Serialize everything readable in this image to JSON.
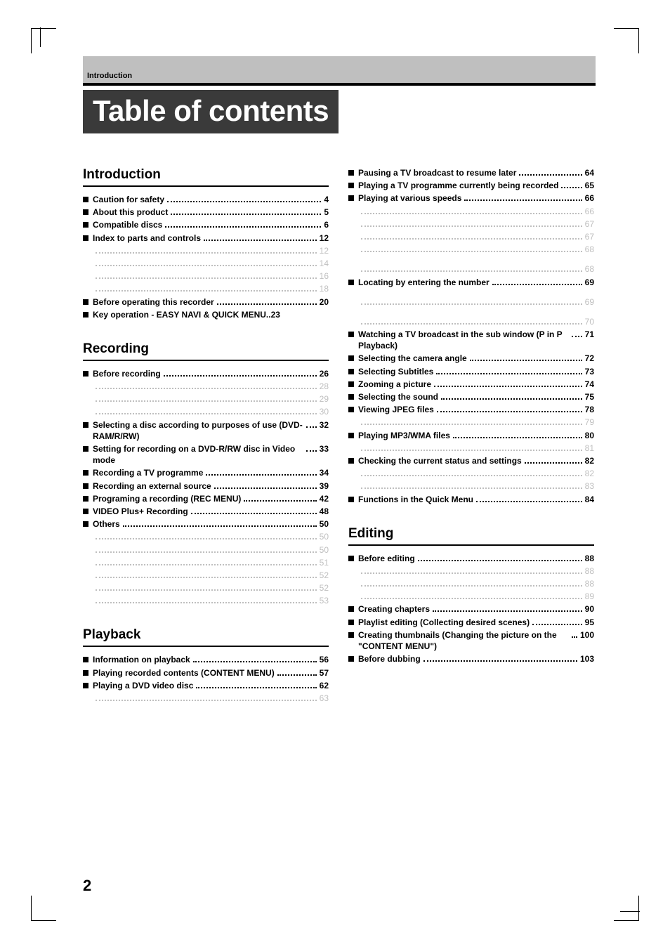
{
  "header_section_label": "Introduction",
  "page_title": "Table of contents",
  "page_number": "2",
  "colors": {
    "header_bar_bg": "#bfbfbf",
    "banner_bg": "#3a3a3a",
    "banner_text": "#ffffff",
    "rule": "#000000",
    "sub_text": "#bfbfbf"
  },
  "left": {
    "sections": [
      {
        "heading": "Introduction",
        "rows": [
          {
            "type": "main",
            "label": "Caution for safety",
            "page": "4"
          },
          {
            "type": "main",
            "label": "About this product",
            "page": "5"
          },
          {
            "type": "main",
            "label": "Compatible discs",
            "page": "6"
          },
          {
            "type": "main",
            "label": "Index to parts and controls",
            "page": "12"
          },
          {
            "type": "sub",
            "label": "",
            "page": "12"
          },
          {
            "type": "sub",
            "label": "",
            "page": "14"
          },
          {
            "type": "sub",
            "label": "",
            "page": "16"
          },
          {
            "type": "sub",
            "label": "",
            "page": "18"
          },
          {
            "type": "main",
            "label": "Before operating this recorder",
            "page": "20"
          },
          {
            "type": "main",
            "label": "Key operation - EASY NAVI & QUICK MENU",
            "page": "23",
            "tight": true
          }
        ]
      },
      {
        "heading": "Recording",
        "rows": [
          {
            "type": "main",
            "label": "Before recording",
            "page": "26"
          },
          {
            "type": "sub",
            "label": "",
            "page": "28"
          },
          {
            "type": "sub",
            "label": "",
            "page": "29"
          },
          {
            "type": "sub",
            "label": "",
            "page": "30"
          },
          {
            "type": "main",
            "label": "Selecting a disc according to purposes of use (DVD-RAM/R/RW)",
            "page": "32",
            "wrap": true
          },
          {
            "type": "main",
            "label": "Setting for recording on a DVD-R/RW disc in Video mode",
            "page": "33",
            "wrap": true
          },
          {
            "type": "main",
            "label": "Recording a TV programme",
            "page": "34"
          },
          {
            "type": "main",
            "label": "Recording an external source",
            "page": "39"
          },
          {
            "type": "main",
            "label": "Programing a recording (REC MENU)",
            "page": "42"
          },
          {
            "type": "main",
            "label": "VIDEO Plus+ Recording",
            "page": "48"
          },
          {
            "type": "main",
            "label": "Others",
            "page": "50"
          },
          {
            "type": "sub",
            "label": "",
            "page": "50"
          },
          {
            "type": "sub",
            "label": "",
            "page": "50"
          },
          {
            "type": "sub",
            "label": "",
            "page": "51"
          },
          {
            "type": "sub",
            "label": "",
            "page": "52"
          },
          {
            "type": "sub",
            "label": "",
            "page": "52"
          },
          {
            "type": "sub",
            "label": "",
            "page": "53"
          }
        ]
      },
      {
        "heading": "Playback",
        "rows": [
          {
            "type": "main",
            "label": "Information on playback",
            "page": "56"
          },
          {
            "type": "main",
            "label": "Playing recorded contents (CONTENT MENU)",
            "page": "57",
            "wrap": true
          },
          {
            "type": "main",
            "label": "Playing a DVD video disc",
            "page": "62"
          },
          {
            "type": "sub",
            "label": "",
            "page": "63"
          }
        ]
      }
    ]
  },
  "right": {
    "pre_rows": [
      {
        "type": "main",
        "label": "Pausing a TV broadcast to resume later",
        "page": "64"
      },
      {
        "type": "main",
        "label": "Playing a TV programme currently being recorded",
        "page": "65",
        "wrap": true
      },
      {
        "type": "main",
        "label": "Playing at various speeds",
        "page": "66"
      },
      {
        "type": "sub",
        "label": "",
        "page": "66"
      },
      {
        "type": "sub",
        "label": "",
        "page": "67"
      },
      {
        "type": "sub",
        "label": "",
        "page": "67"
      },
      {
        "type": "sub",
        "label": "",
        "page": "68"
      },
      {
        "type": "sub",
        "label": "",
        "page": "68",
        "gap_before": true
      },
      {
        "type": "main",
        "label": "Locating by entering the number",
        "page": "69"
      },
      {
        "type": "sub",
        "label": "",
        "page": "69",
        "gap_before": true
      },
      {
        "type": "sub",
        "label": "",
        "page": "70",
        "gap_before": true
      },
      {
        "type": "main",
        "label": "Watching a TV broadcast in the sub window (P in P Playback)",
        "page": "71",
        "wrap": true
      },
      {
        "type": "main",
        "label": "Selecting the camera angle",
        "page": "72"
      },
      {
        "type": "main",
        "label": "Selecting Subtitles",
        "page": "73"
      },
      {
        "type": "main",
        "label": "Zooming a picture",
        "page": "74"
      },
      {
        "type": "main",
        "label": "Selecting the sound",
        "page": "75"
      },
      {
        "type": "main",
        "label": "Viewing JPEG files",
        "page": "78"
      },
      {
        "type": "sub",
        "label": "",
        "page": "79"
      },
      {
        "type": "main",
        "label": "Playing MP3/WMA files",
        "page": "80"
      },
      {
        "type": "sub",
        "label": "",
        "page": "81"
      },
      {
        "type": "main",
        "label": "Checking the current status and settings",
        "page": "82"
      },
      {
        "type": "sub",
        "label": "",
        "page": "82"
      },
      {
        "type": "sub",
        "label": "",
        "page": "83"
      },
      {
        "type": "main",
        "label": "Functions in the Quick Menu",
        "page": "84"
      }
    ],
    "sections": [
      {
        "heading": "Editing",
        "rows": [
          {
            "type": "main",
            "label": "Before editing",
            "page": "88"
          },
          {
            "type": "sub",
            "label": "",
            "page": "88"
          },
          {
            "type": "sub",
            "label": "",
            "page": "88"
          },
          {
            "type": "sub",
            "label": "",
            "page": "89"
          },
          {
            "type": "main",
            "label": "Creating chapters",
            "page": "90"
          },
          {
            "type": "main",
            "label": "Playlist editing (Collecting desired scenes)",
            "page": "95",
            "wrap": true
          },
          {
            "type": "main",
            "label": "Creating thumbnails (Changing the picture on the \"CONTENT MENU\")",
            "page": "100",
            "wrap": true
          },
          {
            "type": "main",
            "label": "Before dubbing",
            "page": "103"
          }
        ]
      }
    ]
  }
}
